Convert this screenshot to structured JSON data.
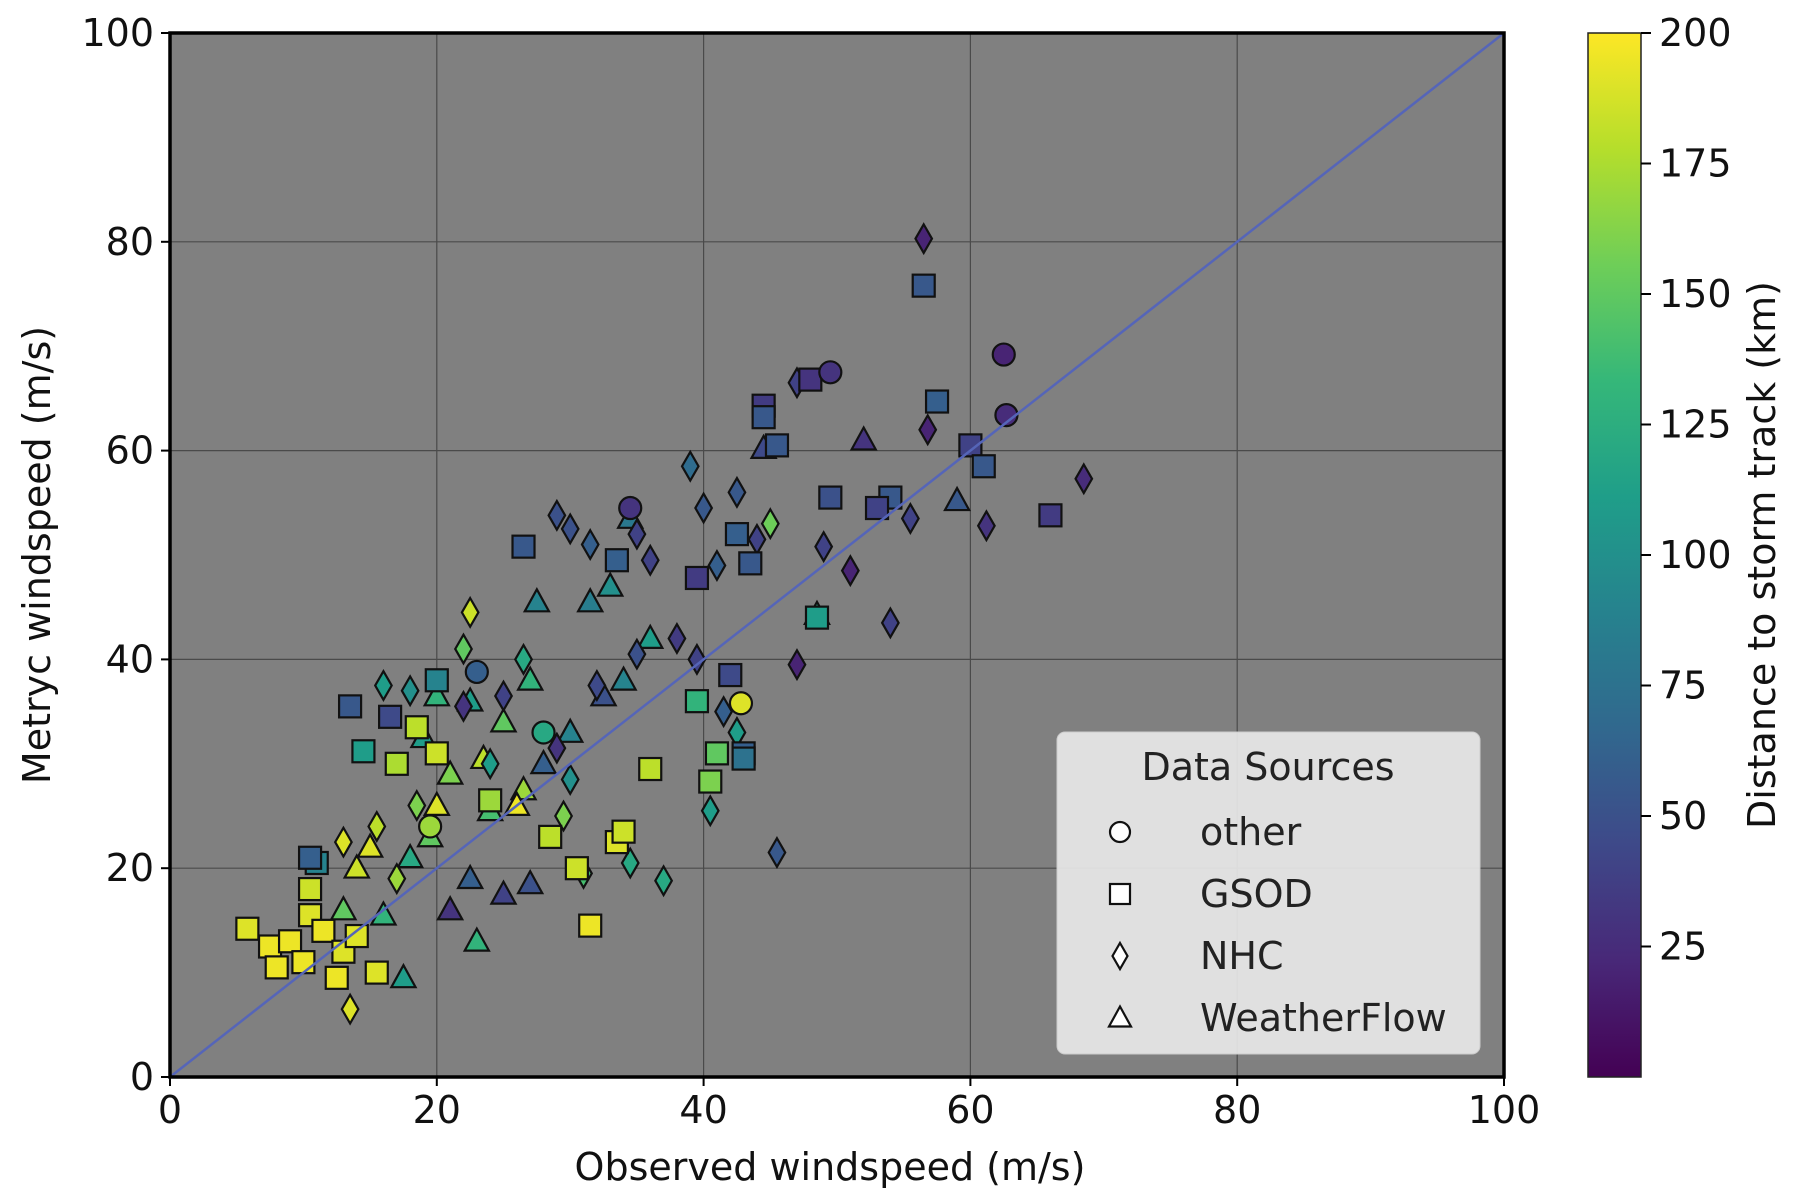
{
  "chart_data": {
    "type": "scatter",
    "title": "",
    "xlabel": "Observed windspeed (m/s)",
    "ylabel": "Metryc windspeed (m/s)",
    "xlim": [
      0,
      100
    ],
    "ylim": [
      0,
      100
    ],
    "x_ticks": [
      0,
      20,
      40,
      60,
      80,
      100
    ],
    "y_ticks": [
      0,
      20,
      40,
      60,
      80,
      100
    ],
    "grid": true,
    "plot_background": "#808080",
    "reference_line": {
      "from": [
        0,
        0
      ],
      "to": [
        100,
        100
      ],
      "color": "#5565b8"
    },
    "colorbar": {
      "label": "Distance to  storm track (km)",
      "range": [
        0,
        200
      ],
      "ticks": [
        25,
        50,
        75,
        100,
        125,
        150,
        175,
        200
      ],
      "colormap": "viridis",
      "colors": [
        "#440154",
        "#482878",
        "#3e4989",
        "#31688e",
        "#26828e",
        "#1f9e89",
        "#35b779",
        "#6ece58",
        "#b5de2b",
        "#fde725"
      ]
    },
    "legend": {
      "title": "Data Sources",
      "location": "lower-right",
      "entries": [
        {
          "label": "other",
          "marker": "circle"
        },
        {
          "label": "GSOD",
          "marker": "square"
        },
        {
          "label": "NHC",
          "marker": "diamond"
        },
        {
          "label": "WeatherFlow",
          "marker": "triangle"
        }
      ]
    },
    "series": [
      {
        "name": "other",
        "marker": "circle",
        "points": [
          [
            34.5,
            54.5,
            30
          ],
          [
            49.5,
            67.5,
            30
          ],
          [
            62.5,
            69.2,
            20
          ],
          [
            62.7,
            63.4,
            25
          ],
          [
            42.8,
            35.8,
            190
          ],
          [
            23.0,
            38.8,
            60
          ],
          [
            28.0,
            33.0,
            120
          ],
          [
            19.5,
            24.0,
            170
          ]
        ]
      },
      {
        "name": "GSOD",
        "marker": "square",
        "points": [
          [
            56.5,
            75.8,
            55
          ],
          [
            57.5,
            64.7,
            60
          ],
          [
            60.0,
            60.5,
            40
          ],
          [
            61.0,
            58.5,
            55
          ],
          [
            66.0,
            53.8,
            35
          ],
          [
            54.0,
            55.5,
            55
          ],
          [
            53.0,
            54.5,
            40
          ],
          [
            44.5,
            64.3,
            35
          ],
          [
            44.5,
            63.2,
            55
          ],
          [
            45.5,
            60.5,
            55
          ],
          [
            48.0,
            66.8,
            30
          ],
          [
            49.5,
            55.5,
            50
          ],
          [
            26.5,
            50.8,
            55
          ],
          [
            33.5,
            49.5,
            60
          ],
          [
            39.5,
            47.8,
            35
          ],
          [
            42.5,
            52.0,
            60
          ],
          [
            43.5,
            49.2,
            55
          ],
          [
            43.0,
            31.0,
            60
          ],
          [
            43.0,
            30.5,
            75
          ],
          [
            13.5,
            35.5,
            55
          ],
          [
            14.5,
            31.2,
            110
          ],
          [
            16.5,
            34.5,
            45
          ],
          [
            20.0,
            38.0,
            90
          ],
          [
            40.5,
            28.3,
            160
          ],
          [
            41.0,
            31.0,
            150
          ],
          [
            48.5,
            44.0,
            110
          ],
          [
            39.5,
            36.0,
            130
          ],
          [
            42.0,
            38.5,
            45
          ],
          [
            5.8,
            14.2,
            190
          ],
          [
            7.5,
            12.5,
            195
          ],
          [
            8.0,
            10.5,
            195
          ],
          [
            9.0,
            13.0,
            195
          ],
          [
            10.0,
            11.0,
            195
          ],
          [
            10.5,
            15.5,
            190
          ],
          [
            11.5,
            14.0,
            195
          ],
          [
            12.5,
            9.5,
            195
          ],
          [
            13.0,
            12.0,
            190
          ],
          [
            10.5,
            18.0,
            185
          ],
          [
            11.0,
            20.5,
            90
          ],
          [
            10.5,
            21.0,
            60
          ],
          [
            15.5,
            10.0,
            190
          ],
          [
            17.0,
            30.0,
            175
          ],
          [
            18.5,
            33.5,
            180
          ],
          [
            20.0,
            31.0,
            185
          ],
          [
            31.5,
            14.5,
            195
          ],
          [
            33.5,
            22.5,
            190
          ],
          [
            34.0,
            23.5,
            185
          ],
          [
            36.0,
            29.5,
            180
          ],
          [
            24.0,
            26.5,
            170
          ],
          [
            28.5,
            23.0,
            180
          ],
          [
            30.5,
            20.0,
            185
          ],
          [
            14.0,
            13.5,
            190
          ]
        ]
      },
      {
        "name": "NHC",
        "marker": "diamond",
        "points": [
          [
            56.5,
            80.3,
            20
          ],
          [
            56.8,
            62.0,
            20
          ],
          [
            68.5,
            57.3,
            25
          ],
          [
            61.2,
            52.8,
            30
          ],
          [
            55.5,
            53.5,
            40
          ],
          [
            54.0,
            43.5,
            40
          ],
          [
            51.0,
            48.5,
            20
          ],
          [
            49.0,
            50.8,
            40
          ],
          [
            47.0,
            66.5,
            40
          ],
          [
            42.5,
            56.0,
            55
          ],
          [
            45.0,
            53.0,
            155
          ],
          [
            44.0,
            51.5,
            40
          ],
          [
            39.0,
            58.5,
            70
          ],
          [
            40.0,
            54.5,
            55
          ],
          [
            41.0,
            49.0,
            60
          ],
          [
            29.0,
            53.8,
            50
          ],
          [
            30.0,
            52.5,
            50
          ],
          [
            31.5,
            51.0,
            60
          ],
          [
            35.0,
            52.0,
            40
          ],
          [
            36.0,
            49.5,
            40
          ],
          [
            47.0,
            39.5,
            20
          ],
          [
            45.5,
            21.5,
            55
          ],
          [
            40.5,
            25.5,
            110
          ],
          [
            34.5,
            20.5,
            120
          ],
          [
            37.0,
            18.8,
            120
          ],
          [
            16.0,
            37.5,
            110
          ],
          [
            13.5,
            6.5,
            190
          ],
          [
            22.5,
            44.5,
            185
          ],
          [
            42.5,
            33.0,
            110
          ],
          [
            41.5,
            35.0,
            60
          ],
          [
            39.5,
            40.0,
            40
          ],
          [
            38.0,
            42.0,
            35
          ],
          [
            25.0,
            36.5,
            40
          ],
          [
            26.5,
            40.0,
            120
          ],
          [
            22.0,
            41.0,
            150
          ],
          [
            30.0,
            28.5,
            100
          ],
          [
            29.0,
            31.5,
            30
          ],
          [
            32.0,
            37.5,
            45
          ],
          [
            31.0,
            19.5,
            140
          ],
          [
            29.5,
            25.0,
            160
          ],
          [
            35.0,
            40.5,
            50
          ],
          [
            18.0,
            37.0,
            100
          ],
          [
            22.0,
            35.5,
            30
          ],
          [
            24.0,
            30.0,
            110
          ],
          [
            13.0,
            22.5,
            190
          ],
          [
            15.5,
            24.0,
            180
          ],
          [
            17.0,
            19.0,
            170
          ],
          [
            18.5,
            26.0,
            160
          ]
        ]
      },
      {
        "name": "WeatherFlow",
        "marker": "triangle",
        "points": [
          [
            52.0,
            61.0,
            30
          ],
          [
            59.0,
            55.2,
            55
          ],
          [
            44.5,
            60.2,
            45
          ],
          [
            48.5,
            44.3,
            120
          ],
          [
            34.5,
            53.5,
            80
          ],
          [
            27.5,
            45.5,
            90
          ],
          [
            31.5,
            45.5,
            85
          ],
          [
            33.0,
            47.0,
            100
          ],
          [
            20.0,
            36.5,
            130
          ],
          [
            22.5,
            36.0,
            110
          ],
          [
            25.0,
            34.0,
            150
          ],
          [
            21.0,
            29.0,
            160
          ],
          [
            20.0,
            26.0,
            190
          ],
          [
            24.0,
            25.5,
            140
          ],
          [
            26.5,
            27.5,
            170
          ],
          [
            28.0,
            30.0,
            60
          ],
          [
            30.0,
            33.0,
            90
          ],
          [
            32.5,
            36.5,
            50
          ],
          [
            34.0,
            38.0,
            90
          ],
          [
            36.0,
            42.0,
            110
          ],
          [
            27.0,
            38.0,
            130
          ],
          [
            19.5,
            23.0,
            150
          ],
          [
            18.0,
            21.0,
            120
          ],
          [
            16.0,
            15.5,
            130
          ],
          [
            17.5,
            9.5,
            110
          ],
          [
            23.0,
            13.0,
            130
          ],
          [
            25.0,
            17.5,
            40
          ],
          [
            27.0,
            18.5,
            50
          ],
          [
            21.0,
            16.0,
            30
          ],
          [
            22.5,
            19.0,
            60
          ],
          [
            14.0,
            20.0,
            185
          ],
          [
            15.0,
            22.0,
            190
          ],
          [
            13.0,
            16.0,
            150
          ],
          [
            19.0,
            32.5,
            110
          ],
          [
            23.5,
            30.5,
            180
          ],
          [
            26.0,
            26.0,
            195
          ]
        ]
      }
    ]
  }
}
